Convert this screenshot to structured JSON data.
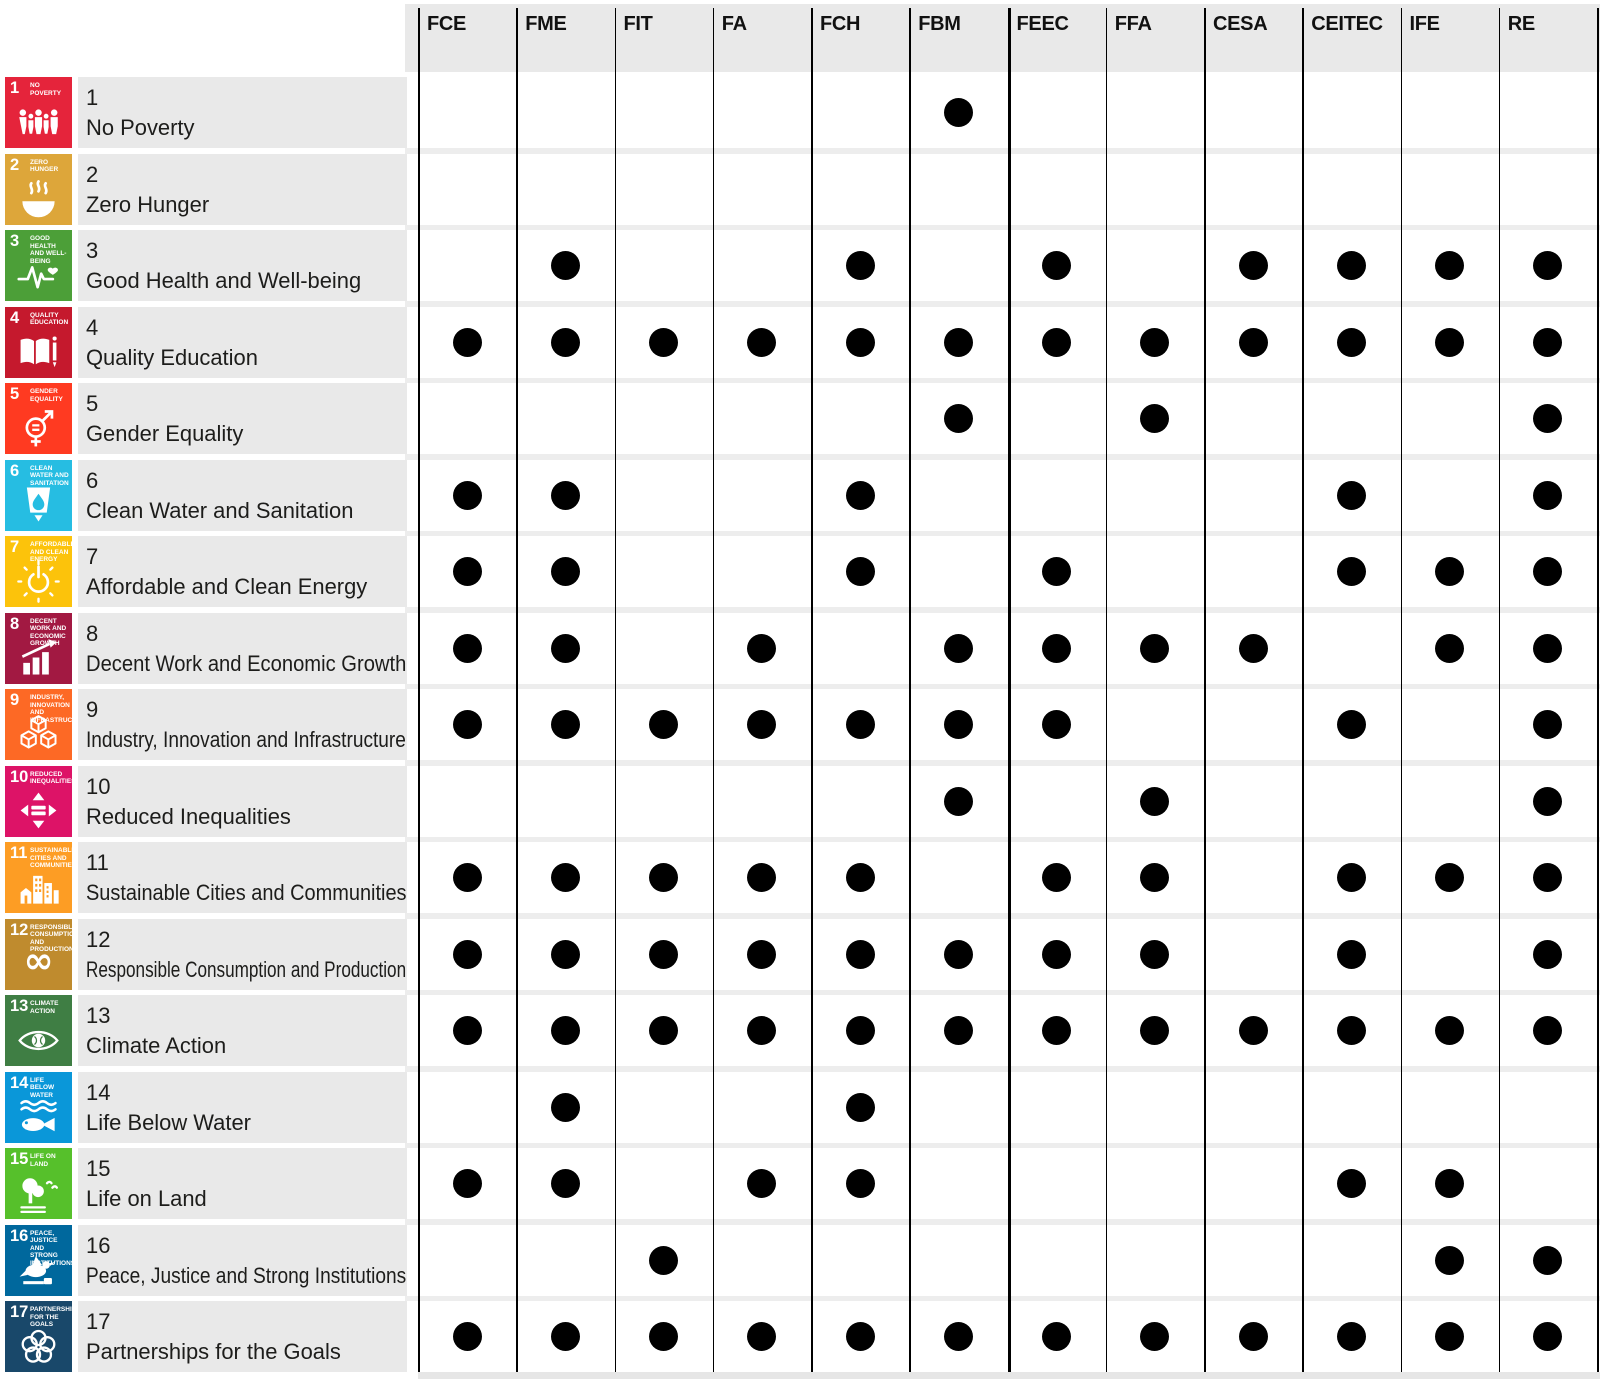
{
  "chart_data": {
    "type": "table",
    "description": "Matrix of UN Sustainable Development Goals (rows) vs university faculties (columns); a black dot marks that the faculty addresses the goal.",
    "columns": [
      "FCE",
      "FME",
      "FIT",
      "FA",
      "FCH",
      "FBM",
      "FEEC",
      "FFA",
      "CESA",
      "CEITEC",
      "IFE",
      "RE"
    ],
    "thick_divider_before": "FEEC",
    "rows": [
      {
        "num": "1",
        "name": "No Poverty",
        "tile_label": "NO POVERTY",
        "color": "#e5243b",
        "icon": "people-group-icon",
        "marks": [
          "FBM"
        ]
      },
      {
        "num": "2",
        "name": "Zero Hunger",
        "tile_label": "ZERO HUNGER",
        "color": "#dda63a",
        "icon": "bowl-steam-icon",
        "marks": []
      },
      {
        "num": "3",
        "name": "Good Health and Well-being",
        "tile_label": "GOOD HEALTH AND WELL-BEING",
        "color": "#4c9f38",
        "icon": "ekg-heart-icon",
        "marks": [
          "FME",
          "FCH",
          "FEEC",
          "CESA",
          "CEITEC",
          "IFE",
          "RE"
        ]
      },
      {
        "num": "4",
        "name": "Quality Education",
        "tile_label": "QUALITY EDUCATION",
        "color": "#c5192d",
        "icon": "open-book-icon",
        "marks": [
          "FCE",
          "FME",
          "FIT",
          "FA",
          "FCH",
          "FBM",
          "FEEC",
          "FFA",
          "CESA",
          "CEITEC",
          "IFE",
          "RE"
        ]
      },
      {
        "num": "5",
        "name": "Gender Equality",
        "tile_label": "GENDER EQUALITY",
        "color": "#ff3a21",
        "icon": "gender-symbol-icon",
        "marks": [
          "FBM",
          "FFA",
          "RE"
        ]
      },
      {
        "num": "6",
        "name": "Clean Water and Sanitation",
        "tile_label": "CLEAN WATER AND SANITATION",
        "color": "#26bde2",
        "icon": "water-glass-icon",
        "marks": [
          "FCE",
          "FME",
          "FCH",
          "CEITEC",
          "RE"
        ]
      },
      {
        "num": "7",
        "name": "Affordable and Clean Energy",
        "tile_label": "AFFORDABLE AND CLEAN ENERGY",
        "color": "#fcc30b",
        "icon": "sun-power-icon",
        "marks": [
          "FCE",
          "FME",
          "FCH",
          "FEEC",
          "CEITEC",
          "IFE",
          "RE"
        ]
      },
      {
        "num": "8",
        "name": "Decent Work and Economic Growth",
        "tile_label": "DECENT WORK AND ECONOMIC GROWTH",
        "color": "#a21942",
        "icon": "growth-chart-icon",
        "marks": [
          "FCE",
          "FME",
          "FA",
          "FBM",
          "FEEC",
          "FFA",
          "CESA",
          "IFE",
          "RE"
        ]
      },
      {
        "num": "9",
        "name": "Industry, Innovation and Infrastructure",
        "tile_label": "INDUSTRY, INNOVATION AND INFRASTRUCTURE",
        "color": "#fd6925",
        "icon": "cubes-icon",
        "marks": [
          "FCE",
          "FME",
          "FIT",
          "FA",
          "FCH",
          "FBM",
          "FEEC",
          "CEITEC",
          "RE"
        ]
      },
      {
        "num": "10",
        "name": "Reduced Inequalities",
        "tile_label": "REDUCED INEQUALITIES",
        "color": "#dd1367",
        "icon": "equality-arrows-icon",
        "marks": [
          "FBM",
          "FFA",
          "RE"
        ]
      },
      {
        "num": "11",
        "name": "Sustainable Cities and Communities",
        "tile_label": "SUSTAINABLE CITIES AND COMMUNITIES",
        "color": "#fd9d24",
        "icon": "city-skyline-icon",
        "marks": [
          "FCE",
          "FME",
          "FIT",
          "FA",
          "FCH",
          "FEEC",
          "FFA",
          "CEITEC",
          "IFE",
          "RE"
        ]
      },
      {
        "num": "12",
        "name": "Responsible Consumption and Production",
        "tile_label": "RESPONSIBLE CONSUMPTION AND PRODUCTION",
        "color": "#bf8b2e",
        "icon": "infinity-icon",
        "marks": [
          "FCE",
          "FME",
          "FIT",
          "FA",
          "FCH",
          "FBM",
          "FEEC",
          "FFA",
          "CEITEC",
          "RE"
        ]
      },
      {
        "num": "13",
        "name": "Climate Action",
        "tile_label": "CLIMATE ACTION",
        "color": "#3f7e44",
        "icon": "eye-globe-icon",
        "marks": [
          "FCE",
          "FME",
          "FIT",
          "FA",
          "FCH",
          "FBM",
          "FEEC",
          "FFA",
          "CESA",
          "CEITEC",
          "IFE",
          "RE"
        ]
      },
      {
        "num": "14",
        "name": "Life Below Water",
        "tile_label": "LIFE BELOW WATER",
        "color": "#0a97d9",
        "icon": "fish-waves-icon",
        "marks": [
          "FME",
          "FCH"
        ]
      },
      {
        "num": "15",
        "name": "Life on Land",
        "tile_label": "LIFE ON LAND",
        "color": "#56c02b",
        "icon": "tree-icon",
        "marks": [
          "FCE",
          "FME",
          "FA",
          "FCH",
          "CEITEC",
          "IFE"
        ]
      },
      {
        "num": "16",
        "name": "Peace, Justice and Strong Institutions",
        "tile_label": "PEACE, JUSTICE AND STRONG INSTITUTIONS",
        "color": "#00689d",
        "icon": "dove-icon",
        "marks": [
          "FIT",
          "IFE",
          "RE"
        ]
      },
      {
        "num": "17",
        "name": "Partnerships for the Goals",
        "tile_label": "PARTNERSHIPS FOR THE GOALS",
        "color": "#19486a",
        "icon": "circles-ring-icon",
        "marks": [
          "FCE",
          "FME",
          "FIT",
          "FA",
          "FCH",
          "FBM",
          "FEEC",
          "FFA",
          "CESA",
          "CEITEC",
          "IFE",
          "RE"
        ]
      }
    ]
  },
  "colors": {
    "dot": "#000000",
    "grid_line": "#000000",
    "header_bg": "#e9e9e9",
    "row_label_bg": "#e9e9e9",
    "row_separator": "#ededed",
    "text": "#1d1d1b"
  }
}
